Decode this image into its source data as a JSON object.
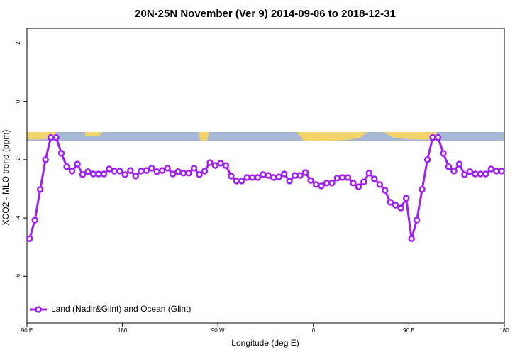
{
  "chart_data": {
    "type": "line",
    "title": "20N-25N November (Ver 9)   2014-09-06 to 2018-12-31",
    "x_label": "Longitude (deg E)",
    "y_label": "XCO2 - MLO trend (ppm)",
    "xlim": [
      90,
      540
    ],
    "ylim": [
      -7.6,
      2.5
    ],
    "xticks": [
      {
        "value": 90,
        "label": "90 E"
      },
      180,
      {
        "value": 270,
        "label": "90 W"
      },
      {
        "value": 360,
        "label": "0"
      },
      {
        "value": 450,
        "label": "90 E"
      },
      {
        "value": 540,
        "label": "180"
      }
    ],
    "yticks": [
      -6,
      -4,
      -2,
      0,
      2
    ],
    "legend": "bottomleft",
    "x": [
      92.5,
      97.5,
      102.5,
      107.5,
      112.5,
      117.5,
      122.5,
      127.5,
      132.5,
      137.5,
      142.5,
      147.5,
      152.5,
      157.5,
      162.5,
      167.5,
      172.5,
      177.5,
      182.5,
      187.5,
      192.5,
      197.5,
      202.5,
      207.5,
      212.5,
      217.5,
      222.5,
      227.5,
      232.5,
      237.5,
      242.5,
      247.5,
      252.5,
      257.5,
      262.5,
      267.5,
      272.5,
      277.5,
      282.5,
      287.5,
      292.5,
      297.5,
      302.5,
      307.5,
      312.5,
      317.5,
      322.5,
      327.5,
      332.5,
      337.5,
      342.5,
      347.5,
      352.5,
      357.5,
      362.5,
      367.5,
      372.5,
      377.5,
      382.5,
      387.5,
      392.5,
      397.5,
      402.5,
      407.5,
      412.5,
      417.5,
      422.5,
      427.5,
      432.5,
      437.5,
      442.5,
      447.5,
      452.5,
      457.5,
      462.5,
      467.5,
      472.5,
      477.5,
      482.5,
      487.5,
      492.5,
      497.5,
      502.5,
      507.5,
      512.5,
      517.5,
      522.5,
      527.5,
      532.5,
      537.5
    ],
    "series": [
      {
        "name": "Land (Nadir&Glint) and Ocean (Glint)",
        "color": "#a020f0",
        "values": [
          -4.71,
          -4.07,
          -3.02,
          -2.0,
          -1.24,
          -1.24,
          -1.78,
          -2.24,
          -2.39,
          -2.15,
          -2.51,
          -2.41,
          -2.49,
          -2.49,
          -2.49,
          -2.32,
          -2.39,
          -2.39,
          -2.51,
          -2.37,
          -2.56,
          -2.39,
          -2.37,
          -2.29,
          -2.41,
          -2.37,
          -2.29,
          -2.49,
          -2.41,
          -2.46,
          -2.46,
          -2.29,
          -2.51,
          -2.39,
          -2.1,
          -2.2,
          -2.12,
          -2.2,
          -2.56,
          -2.73,
          -2.73,
          -2.61,
          -2.61,
          -2.61,
          -2.51,
          -2.54,
          -2.61,
          -2.59,
          -2.49,
          -2.73,
          -2.54,
          -2.54,
          -2.44,
          -2.71,
          -2.85,
          -2.9,
          -2.8,
          -2.8,
          -2.63,
          -2.61,
          -2.61,
          -2.8,
          -2.93,
          -2.76,
          -2.46,
          -2.66,
          -2.85,
          -3.05,
          -3.46,
          -3.56,
          -3.66,
          -3.32,
          -4.71,
          -4.07,
          -3.02,
          -2.0,
          -1.24,
          -1.24,
          -1.78,
          -2.24,
          -2.39,
          -2.15,
          -2.51,
          -2.41,
          -2.49,
          -2.49,
          -2.49,
          -2.32,
          -2.39,
          -2.39
        ]
      }
    ]
  }
}
